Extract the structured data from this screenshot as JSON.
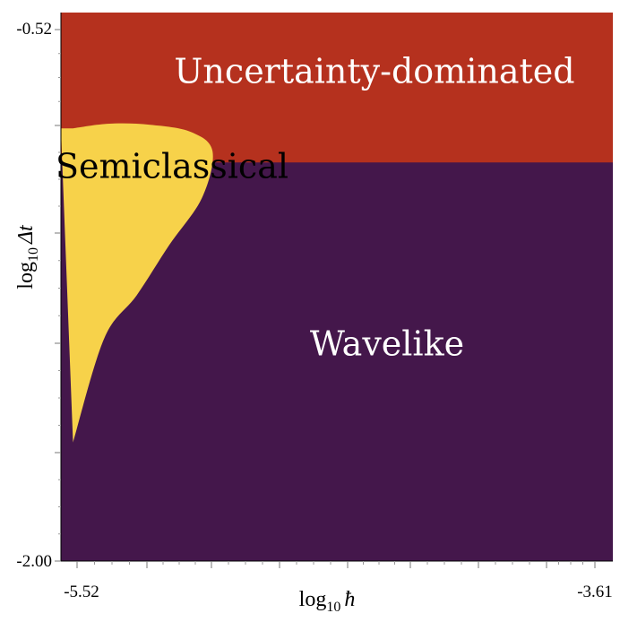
{
  "chart_data": {
    "type": "heatmap",
    "title": "",
    "xlabel": "log10 ħ",
    "ylabel": "log10 Δt",
    "x_axis": {
      "label_prefix": "log",
      "label_sub": "10",
      "label_symbol": "ħ",
      "range": [
        -5.52,
        -3.61
      ],
      "tick_labels": [
        "-5.52",
        "-3.61"
      ]
    },
    "y_axis": {
      "label_prefix": "log",
      "label_sub": "10",
      "label_symbol": "Δt",
      "range": [
        -2.0,
        -0.52
      ],
      "tick_labels": [
        "-0.52",
        "-2.00"
      ]
    },
    "regions": [
      {
        "name": "Uncertainty-dominated",
        "color": "#b5311e",
        "text_color": "#ffffff"
      },
      {
        "name": "Semiclassical",
        "color": "#f7d24a",
        "text_color": "#000000"
      },
      {
        "name": "Wavelike",
        "color": "#44174b",
        "text_color": "#ffffff"
      }
    ],
    "boundaries": {
      "uncertainty_lower_log10_dt": -0.89,
      "semiclassical_outline": [
        [
          -5.535,
          -0.795
        ],
        [
          -5.4,
          -0.782
        ],
        [
          -5.25,
          -0.785
        ],
        [
          -5.1,
          -0.805
        ],
        [
          -5.02,
          -0.86
        ],
        [
          -5.06,
          -0.99
        ],
        [
          -5.18,
          -1.12
        ],
        [
          -5.3,
          -1.26
        ],
        [
          -5.42,
          -1.38
        ],
        [
          -5.535,
          -1.67
        ]
      ]
    }
  }
}
